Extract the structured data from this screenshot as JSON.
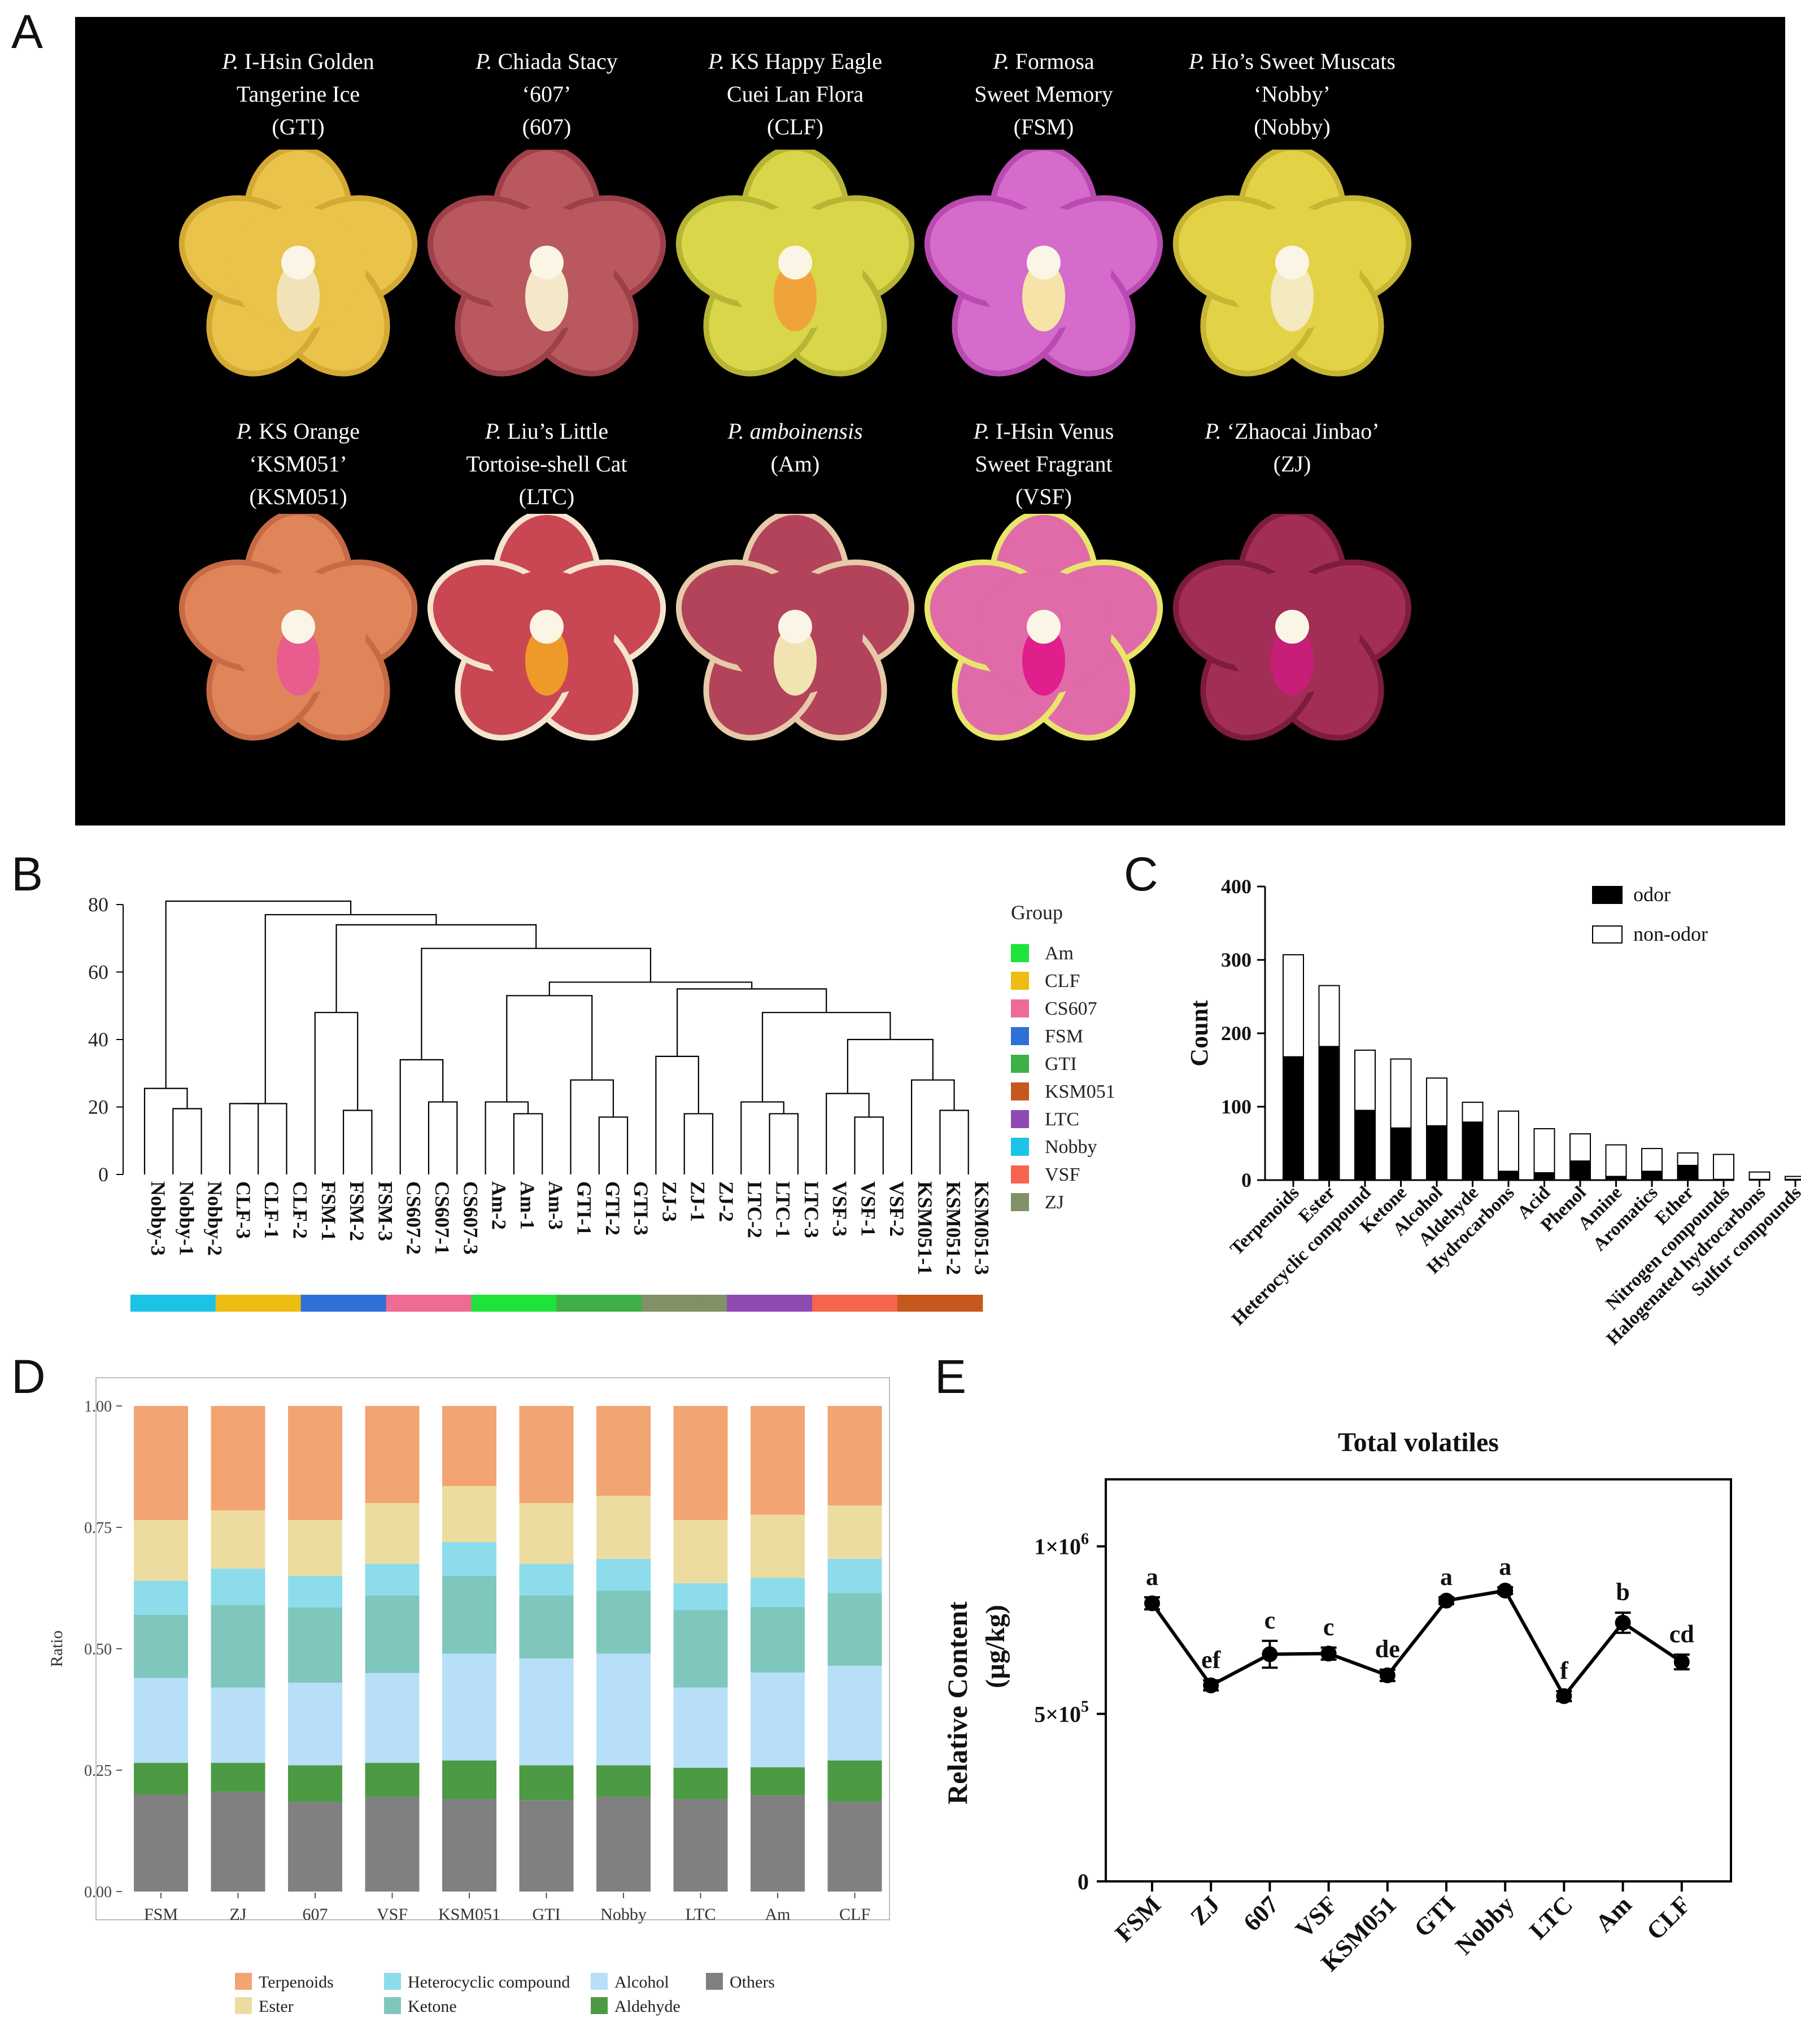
{
  "panels": {
    "a": "A",
    "b": "B",
    "c": "C",
    "d": "D",
    "e": "E"
  },
  "flowers": [
    {
      "genus": "P.",
      "line1": "I-Hsin Golden",
      "line2": "Tangerine Ice",
      "abbr": "(GTI)",
      "petal": "#E9C34A",
      "edge": "#D4A934",
      "lip": "#F2E2B8"
    },
    {
      "genus": "P.",
      "line1": "Chiada Stacy",
      "line2": "‘607’",
      "abbr": "(607)",
      "petal": "#B9585F",
      "edge": "#9E4049",
      "lip": "#F5E8C9"
    },
    {
      "genus": "P.",
      "line1": "KS Happy Eagle",
      "line2": "Cuei Lan Flora",
      "abbr": "(CLF)",
      "petal": "#D9D64A",
      "edge": "#B7B534",
      "lip": "#F0A33A"
    },
    {
      "genus": "P.",
      "line1": "Formosa",
      "line2": "Sweet Memory",
      "abbr": "(FSM)",
      "petal": "#D56BCB",
      "edge": "#B94AB1",
      "lip": "#F6E3A8"
    },
    {
      "genus": "P.",
      "line1": "Ho’s Sweet Muscats",
      "line2": "‘Nobby’",
      "abbr": "(Nobby)",
      "petal": "#E3D245",
      "edge": "#C7B533",
      "lip": "#F3EAC0"
    },
    {
      "genus": "P.",
      "line1": "KS Orange",
      "line2": "‘KSM051’",
      "abbr": "(KSM051)",
      "petal": "#E0855A",
      "edge": "#C86A45",
      "lip": "#E85C8E"
    },
    {
      "genus": "P.",
      "line1": "Liu’s Little",
      "line2": "Tortoise-shell Cat",
      "abbr": "(LTC)",
      "petal": "#C94653",
      "edge": "#F3E4CF",
      "lip": "#EE9A28"
    },
    {
      "genus": "P.",
      "line1": "amboinensis",
      "line2": "(Am)",
      "abbr": "",
      "petal": "#B2435A",
      "edge": "#E6C9A8",
      "lip": "#F2E3B3"
    },
    {
      "genus": "P.",
      "line1": "I-Hsin Venus",
      "line2": "Sweet Fragrant",
      "abbr": "(VSF)",
      "petal": "#E06BA8",
      "edge": "#E8E56A",
      "lip": "#E01E8C"
    },
    {
      "genus": "P.",
      "line1": "‘Zhaocai Jinbao’",
      "line2": "(ZJ)",
      "abbr": "",
      "petal": "#A32E55",
      "edge": "#7E1C3E",
      "lip": "#C71E78"
    }
  ],
  "chart_data": [
    {
      "type": "dendrogram",
      "panel": "B",
      "yticks": [
        "0",
        "20",
        "40",
        "60",
        "80"
      ],
      "ylim": [
        0,
        82
      ],
      "leaves": [
        "Nobby-3",
        "Nobby-1",
        "Nobby-2",
        "CLF-3",
        "CLF-1",
        "CLF-2",
        "FSM-1",
        "FSM-2",
        "FSM-3",
        "CS607-2",
        "CS607-1",
        "CS607-3",
        "Am-2",
        "Am-1",
        "Am-3",
        "GTI-1",
        "GTI-2",
        "GTI-3",
        "ZJ-3",
        "ZJ-1",
        "ZJ-2",
        "LTC-2",
        "LTC-1",
        "LTC-3",
        "VSF-3",
        "VSF-1",
        "VSF-2",
        "KSM051-1",
        "KSM051-2",
        "KSM051-3"
      ],
      "merges": [
        [
          1,
          2,
          19.5
        ],
        [
          0,
          30,
          25.5
        ],
        [
          3,
          4,
          21
        ],
        [
          32,
          5,
          21
        ],
        [
          7,
          8,
          19
        ],
        [
          6,
          34,
          48
        ],
        [
          10,
          11,
          21.5
        ],
        [
          9,
          36,
          34
        ],
        [
          13,
          14,
          18
        ],
        [
          12,
          38,
          21.5
        ],
        [
          16,
          17,
          17
        ],
        [
          15,
          40,
          28
        ],
        [
          39,
          41,
          53
        ],
        [
          19,
          20,
          18
        ],
        [
          18,
          43,
          35
        ],
        [
          22,
          23,
          18
        ],
        [
          21,
          45,
          21.5
        ],
        [
          25,
          26,
          17
        ],
        [
          24,
          47,
          24
        ],
        [
          28,
          29,
          19
        ],
        [
          27,
          49,
          28
        ],
        [
          48,
          50,
          40
        ],
        [
          46,
          51,
          48
        ],
        [
          44,
          52,
          55
        ],
        [
          42,
          53,
          57
        ],
        [
          37,
          54,
          67
        ],
        [
          35,
          55,
          74
        ],
        [
          33,
          56,
          77
        ],
        [
          31,
          57,
          81
        ]
      ],
      "legend_title": "Group",
      "groups": [
        {
          "name": "Am",
          "color": "#1EE33A"
        },
        {
          "name": "CLF",
          "color": "#EDBD14"
        },
        {
          "name": "CS607",
          "color": "#EE6B93"
        },
        {
          "name": "FSM",
          "color": "#2F6FD8"
        },
        {
          "name": "GTI",
          "color": "#3FAF48"
        },
        {
          "name": "KSM051",
          "color": "#C6581E"
        },
        {
          "name": "LTC",
          "color": "#8E4AB3"
        },
        {
          "name": "Nobby",
          "color": "#1BC4E6"
        },
        {
          "name": "VSF",
          "color": "#F5644D"
        },
        {
          "name": "ZJ",
          "color": "#7F9165"
        }
      ],
      "color_bar": [
        "Nobby",
        "CLF",
        "FSM",
        "CS607",
        "Am",
        "GTI",
        "ZJ",
        "LTC",
        "VSF",
        "KSM051"
      ]
    },
    {
      "type": "bar",
      "panel": "C",
      "ylabel": "Count",
      "ylim": [
        0,
        400
      ],
      "yticks": [
        "0",
        "100",
        "200",
        "300",
        "400"
      ],
      "categories": [
        "Terpenoids",
        "Ester",
        "Heterocyclic compound",
        "Ketone",
        "Alcohol",
        "Aldehyde",
        "Hydrocarbons",
        "Acid",
        "Phenol",
        "Amine",
        "Aromatics",
        "Ether",
        "Nitrogen compounds",
        "Halogenated hydrocarbons",
        "Sulfur compounds"
      ],
      "series": [
        {
          "name": "odor",
          "color": "#000000",
          "values": [
            168,
            182,
            95,
            71,
            74,
            79,
            12,
            10,
            26,
            5,
            12,
            20,
            1,
            1,
            1
          ]
        },
        {
          "name": "non-odor",
          "color": "#ffffff",
          "values": [
            139,
            83,
            82,
            94,
            65,
            27,
            82,
            60,
            37,
            43,
            31,
            17,
            34,
            10,
            4
          ]
        }
      ]
    },
    {
      "type": "bar",
      "panel": "D",
      "stacked": true,
      "ylabel": "Ratio",
      "ylim": [
        0,
        1
      ],
      "yticks": [
        "0.00",
        "0.25",
        "0.50",
        "0.75",
        "1.00"
      ],
      "categories": [
        "FSM",
        "ZJ",
        "607",
        "VSF",
        "KSM051",
        "GTI",
        "Nobby",
        "LTC",
        "Am",
        "CLF"
      ],
      "series": [
        {
          "name": "Others",
          "color": "#808080",
          "values": [
            0.2,
            0.205,
            0.185,
            0.195,
            0.19,
            0.188,
            0.195,
            0.19,
            0.198,
            0.185
          ]
        },
        {
          "name": "Aldehyde",
          "color": "#4C9A44",
          "values": [
            0.065,
            0.06,
            0.075,
            0.07,
            0.08,
            0.072,
            0.065,
            0.065,
            0.058,
            0.085
          ]
        },
        {
          "name": "Alcohol",
          "color": "#B7DFF8",
          "values": [
            0.175,
            0.155,
            0.17,
            0.185,
            0.22,
            0.22,
            0.23,
            0.165,
            0.195,
            0.195
          ]
        },
        {
          "name": "Ketone",
          "color": "#7FC7BD",
          "values": [
            0.13,
            0.17,
            0.155,
            0.16,
            0.16,
            0.13,
            0.13,
            0.16,
            0.135,
            0.15
          ]
        },
        {
          "name": "Heterocyclic compound",
          "color": "#8DDCEC",
          "values": [
            0.07,
            0.075,
            0.065,
            0.065,
            0.07,
            0.065,
            0.065,
            0.055,
            0.06,
            0.07
          ]
        },
        {
          "name": "Ester",
          "color": "#EDDC9F",
          "values": [
            0.125,
            0.12,
            0.115,
            0.125,
            0.115,
            0.125,
            0.13,
            0.13,
            0.13,
            0.11
          ]
        },
        {
          "name": "Terpenoids",
          "color": "#F2A472",
          "values": [
            0.235,
            0.215,
            0.235,
            0.2,
            0.165,
            0.2,
            0.185,
            0.235,
            0.224,
            0.205
          ]
        }
      ],
      "legend": [
        "Terpenoids",
        "Heterocyclic compound",
        "Alcohol",
        "Others",
        "Ester",
        "Ketone",
        "Aldehyde"
      ]
    },
    {
      "type": "line",
      "panel": "E",
      "title": "Total volatiles",
      "ylabel": "Relative Content",
      "ylabel_unit": "(µg/kg)",
      "ylim": [
        0,
        1200000
      ],
      "ytick_labels": {
        "zero": "0",
        "mid_base": "5×10",
        "mid_exp": "5",
        "top_base": "1×10",
        "top_exp": "6"
      },
      "categories": [
        "FSM",
        "ZJ",
        "607",
        "VSF",
        "KSM051",
        "GTI",
        "Nobby",
        "LTC",
        "Am",
        "CLF"
      ],
      "values": [
        830000,
        585000,
        678000,
        680000,
        615000,
        838000,
        868000,
        553000,
        772000,
        655000
      ],
      "errors": [
        18000,
        15000,
        40000,
        18000,
        17000,
        10000,
        10000,
        15000,
        30000,
        22000
      ],
      "letters": [
        "a",
        "ef",
        "c",
        "c",
        "de",
        "a",
        "a",
        "f",
        "b",
        "cd"
      ]
    }
  ]
}
